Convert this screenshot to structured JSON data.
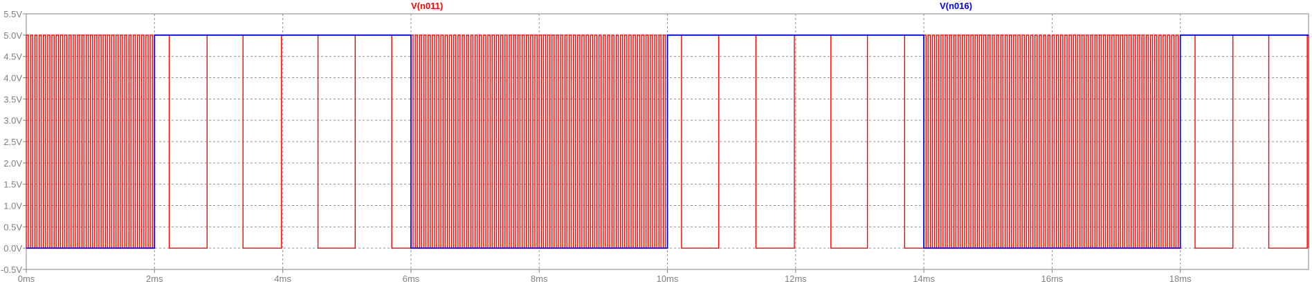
{
  "chart_data": {
    "type": "line",
    "title": "",
    "xlabel": "",
    "ylabel": "",
    "xlim": [
      0,
      20
    ],
    "ylim": [
      -0.5,
      5.5
    ],
    "x_unit": "ms",
    "y_unit": "V",
    "grid": true,
    "legend": "top",
    "x_ticks": [
      "0ms",
      "2ms",
      "4ms",
      "6ms",
      "8ms",
      "10ms",
      "12ms",
      "14ms",
      "16ms",
      "18ms"
    ],
    "y_ticks": [
      "-0.5V",
      "0.0V",
      "0.5V",
      "1.0V",
      "1.5V",
      "2.0V",
      "2.5V",
      "3.0V",
      "3.5V",
      "4.0V",
      "4.5V",
      "5.0V",
      "5.5V"
    ],
    "series": [
      {
        "name": "V(n011)",
        "color": "#ff0000",
        "low": 0,
        "high": 5,
        "segments": [
          {
            "start": 0,
            "end": 2,
            "period": 0.0667,
            "duty": 0.5
          },
          {
            "start": 2,
            "end": 6,
            "pulses": [
              [
                2.0,
                2.23
              ],
              [
                2.82,
                3.38
              ],
              [
                3.98,
                4.55
              ],
              [
                5.13,
                5.7
              ]
            ]
          },
          {
            "start": 6,
            "end": 10,
            "period": 0.0667,
            "duty": 0.5
          },
          {
            "start": 10,
            "end": 14,
            "pulses": [
              [
                10.0,
                10.22
              ],
              [
                10.8,
                11.38
              ],
              [
                11.98,
                12.55
              ],
              [
                13.12,
                13.7
              ]
            ]
          },
          {
            "start": 14,
            "end": 18,
            "period": 0.0667,
            "duty": 0.5
          },
          {
            "start": 18,
            "end": 20,
            "pulses": [
              [
                18.0,
                18.23
              ],
              [
                18.82,
                19.38
              ],
              [
                19.98,
                20.0
              ]
            ]
          }
        ]
      },
      {
        "name": "V(n016)",
        "color": "#0000ff",
        "low": 0,
        "high": 5,
        "high_intervals": [
          [
            2,
            6
          ],
          [
            10,
            14
          ],
          [
            18,
            20
          ]
        ]
      }
    ]
  }
}
